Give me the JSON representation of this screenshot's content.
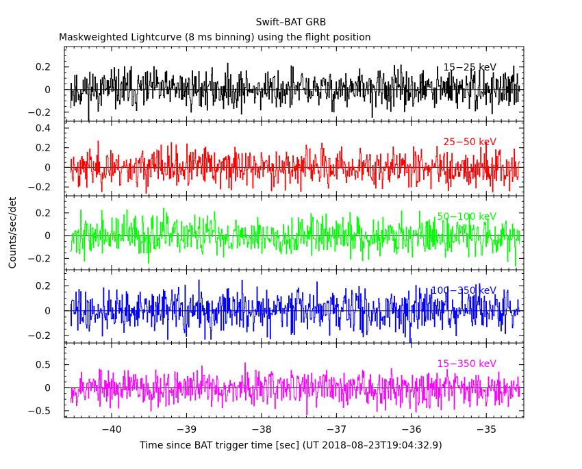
{
  "figure": {
    "title": "Swift–BAT GRB",
    "subtitle": "Maskweighted Lightcurve (8 ms binning) using the flight position",
    "ylabel": "Counts/sec/det",
    "xlabel": "Time since BAT trigger time [sec] (UT 2018–08–23T19:04:32.9)"
  },
  "chart_data": [
    {
      "type": "line",
      "name": "15−25 keV",
      "band_label": "15−25 keV",
      "color": "#000000",
      "x_range": [
        -40.55,
        -34.55
      ],
      "bin_width_s": 0.008,
      "ylim": [
        -0.28,
        0.38
      ],
      "yticks": [
        -0.2,
        0,
        0.2
      ],
      "ytick_labels": [
        "−0.2",
        "0",
        "0.2"
      ],
      "mean": 0.0,
      "noise_sigma": 0.09,
      "peak_range": [
        -0.28,
        0.38
      ],
      "seed": 11
    },
    {
      "type": "line",
      "name": "25−50 keV",
      "band_label": "25−50 keV",
      "color": "#ff0000",
      "x_range": [
        -40.55,
        -34.55
      ],
      "bin_width_s": 0.008,
      "ylim": [
        -0.29,
        0.47
      ],
      "yticks": [
        -0.2,
        0,
        0.2,
        0.4
      ],
      "ytick_labels": [
        "−0.2",
        "0",
        "0.2",
        "0.4"
      ],
      "mean": 0.0,
      "noise_sigma": 0.1,
      "peak_range": [
        -0.28,
        0.45
      ],
      "seed": 23
    },
    {
      "type": "line",
      "name": "50−100 keV",
      "band_label": "50−100 keV",
      "color": "#00ff00",
      "x_range": [
        -40.55,
        -34.55
      ],
      "bin_width_s": 0.008,
      "ylim": [
        -0.3,
        0.35
      ],
      "yticks": [
        -0.2,
        0,
        0.2
      ],
      "ytick_labels": [
        "−0.2",
        "0",
        "0.2"
      ],
      "mean": 0.0,
      "noise_sigma": 0.09,
      "peak_range": [
        -0.3,
        0.33
      ],
      "seed": 37
    },
    {
      "type": "line",
      "name": "100−350 keV",
      "band_label": "100−350 keV",
      "color": "#0000ff",
      "x_range": [
        -40.55,
        -34.55
      ],
      "bin_width_s": 0.008,
      "ylim": [
        -0.26,
        0.33
      ],
      "yticks": [
        -0.2,
        0,
        0.2
      ],
      "ytick_labels": [
        "−0.2",
        "0",
        "0.2"
      ],
      "mean": 0.0,
      "noise_sigma": 0.09,
      "peak_range": [
        -0.26,
        0.33
      ],
      "seed": 41
    },
    {
      "type": "line",
      "name": "15−350 keV",
      "band_label": "15−350 keV",
      "color": "#ff00ff",
      "x_range": [
        -40.55,
        -34.55
      ],
      "bin_width_s": 0.008,
      "ylim": [
        -0.65,
        0.97
      ],
      "yticks": [
        -0.5,
        0,
        0.5
      ],
      "ytick_labels": [
        "−0.5",
        "0",
        "0.5"
      ],
      "mean": 0.0,
      "noise_sigma": 0.2,
      "peak_range": [
        -0.65,
        0.85
      ],
      "seed": 53
    }
  ],
  "x_axis": {
    "xlim": [
      -40.63,
      -34.5
    ],
    "ticks": [
      -40,
      -39,
      -38,
      -37,
      -36,
      -35
    ],
    "tick_labels": [
      "−40",
      "−39",
      "−38",
      "−37",
      "−36",
      "−35"
    ],
    "minor_step": 0.1
  }
}
